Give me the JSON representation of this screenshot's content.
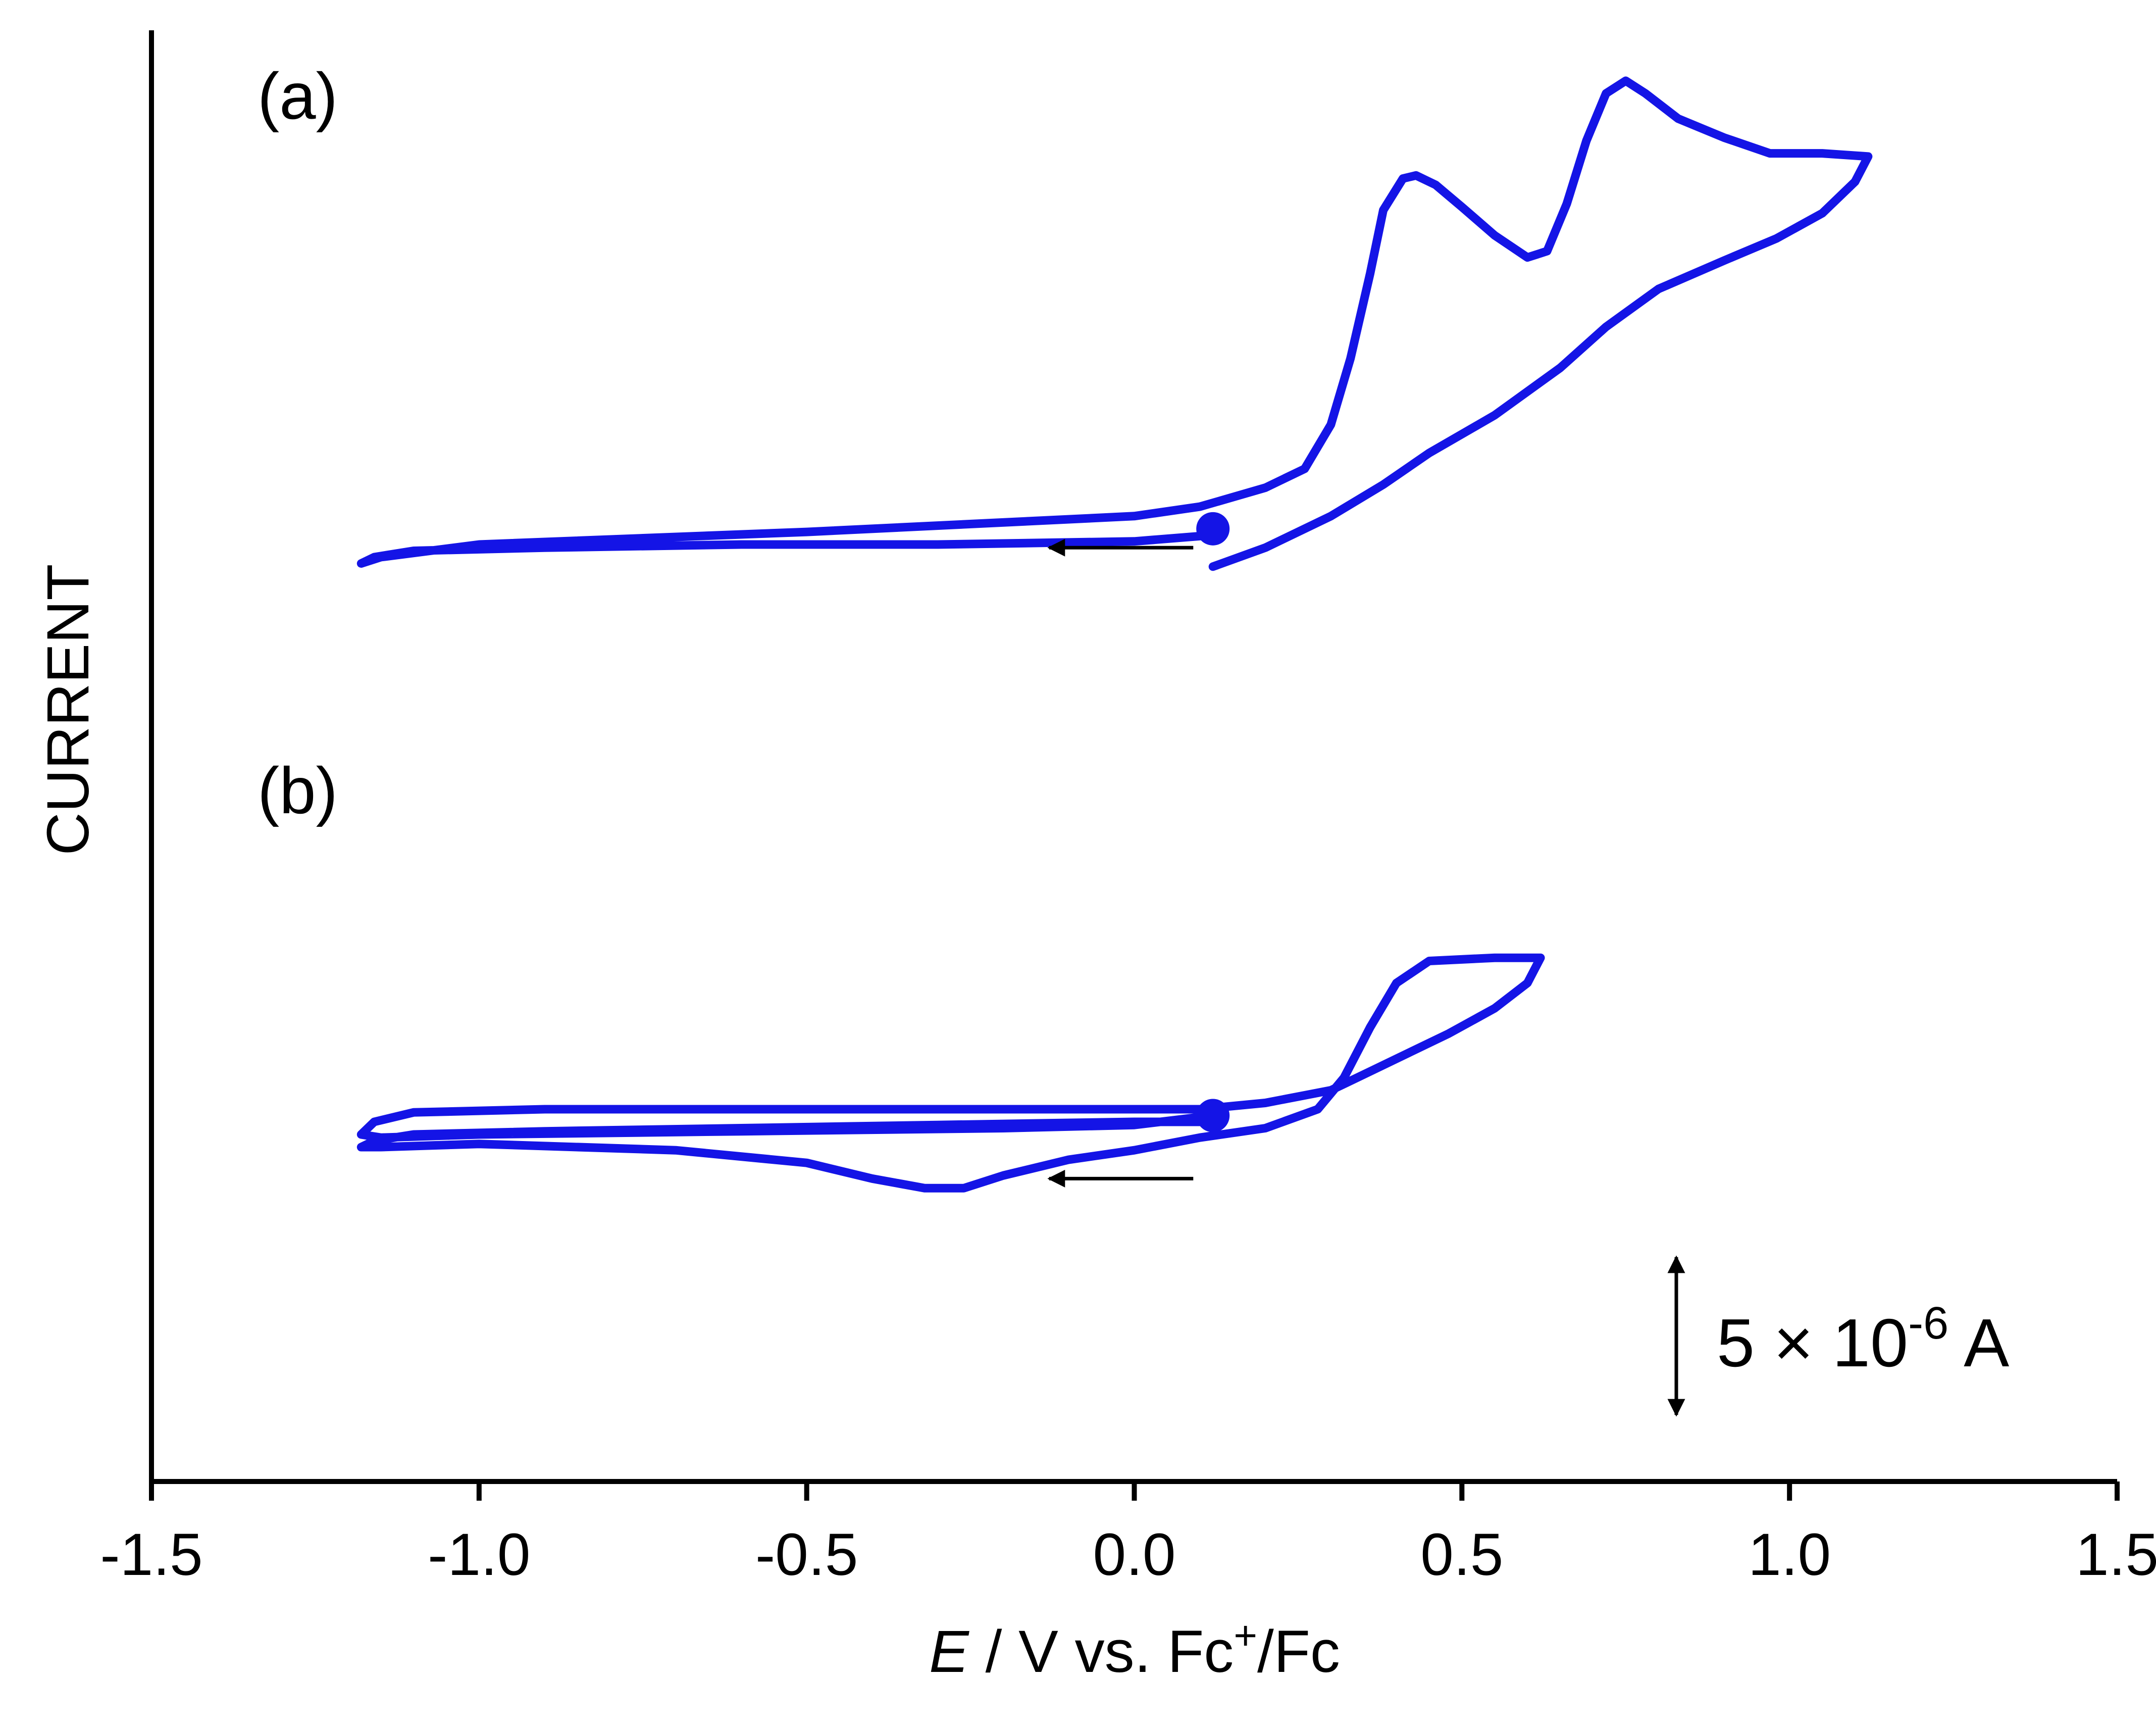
{
  "chart_data": {
    "type": "line",
    "title": "",
    "xlabel": "E / V vs. Fc+/Fc",
    "xlabel_parts": {
      "var": "E",
      "rest1": " / V vs. Fc",
      "sup": "+",
      "rest2": "/Fc"
    },
    "ylabel": "CURRENT",
    "xlim": [
      -1.5,
      1.5
    ],
    "xticks": [
      -1.5,
      -1.0,
      -0.5,
      0.0,
      0.5,
      1.0,
      1.5
    ],
    "xtick_labels": [
      "-1.5",
      "-1.0",
      "-0.5",
      "0.0",
      "0.5",
      "1.0",
      "1.5"
    ],
    "ylim": [
      0,
      46
    ],
    "y_units": "µA (arbitrary offset)",
    "grid": false,
    "line_color": "#1414e6",
    "scale_bar": {
      "text_main": "5 × 10",
      "text_sup": "-6",
      "text_unit": " A",
      "value_uA": 5
    },
    "series": [
      {
        "name": "(a)",
        "label": "(a)",
        "start": [
          0.12,
          30.2
        ],
        "x": [
          0.12,
          0.0,
          -0.3,
          -0.6,
          -0.9,
          -1.1,
          -1.16,
          -1.18,
          -1.15,
          -1.0,
          -0.5,
          0.0,
          0.1,
          0.2,
          0.26,
          0.3,
          0.33,
          0.36,
          0.38,
          0.41,
          0.43,
          0.46,
          0.5,
          0.55,
          0.6,
          0.63,
          0.66,
          0.69,
          0.72,
          0.75,
          0.78,
          0.83,
          0.9,
          0.97,
          1.05,
          1.12,
          1.1,
          1.05,
          0.98,
          0.9,
          0.8,
          0.72,
          0.65,
          0.55,
          0.45,
          0.38,
          0.3,
          0.2,
          0.12
        ],
        "y": [
          30.0,
          29.8,
          29.7,
          29.7,
          29.6,
          29.5,
          29.3,
          29.1,
          29.3,
          29.7,
          30.1,
          30.6,
          30.9,
          31.5,
          32.1,
          33.5,
          35.6,
          38.3,
          40.3,
          41.3,
          41.4,
          41.1,
          40.4,
          39.5,
          38.8,
          39.0,
          40.5,
          42.5,
          44.0,
          44.4,
          44.0,
          43.2,
          42.6,
          42.1,
          42.1,
          42.0,
          41.2,
          40.2,
          39.4,
          38.7,
          37.8,
          36.6,
          35.3,
          33.8,
          32.6,
          31.6,
          30.6,
          29.6,
          29.0
        ]
      },
      {
        "name": "(b)",
        "label": "(b)",
        "start": [
          0.12,
          11.6
        ],
        "x": [
          0.12,
          0.0,
          -0.3,
          -0.6,
          -0.9,
          -1.1,
          -1.16,
          -1.18,
          -1.15,
          -1.0,
          -0.7,
          -0.5,
          -0.4,
          -0.32,
          -0.26,
          -0.2,
          -0.1,
          0.0,
          0.1,
          0.2,
          0.28,
          0.32,
          0.36,
          0.4,
          0.45,
          0.55,
          0.62,
          0.6,
          0.55,
          0.48,
          0.42,
          0.36,
          0.3,
          0.2,
          0.1,
          0.0,
          -0.2,
          -0.5,
          -0.9,
          -1.1,
          -1.16,
          -1.18,
          -1.15,
          -1.0,
          -0.6,
          -0.2,
          0.0,
          0.12
        ],
        "y": [
          11.4,
          11.4,
          11.3,
          11.2,
          11.1,
          11.0,
          10.8,
          10.6,
          10.6,
          10.7,
          10.5,
          10.1,
          9.6,
          9.3,
          9.3,
          9.7,
          10.2,
          10.5,
          10.9,
          11.2,
          11.8,
          12.8,
          14.4,
          15.8,
          16.5,
          16.6,
          16.6,
          15.8,
          15.0,
          14.2,
          13.6,
          13.0,
          12.4,
          12.0,
          11.8,
          11.8,
          11.8,
          11.8,
          11.8,
          11.7,
          11.4,
          11.0,
          10.9,
          11.0,
          11.1,
          11.2,
          11.3,
          11.6
        ]
      }
    ],
    "annotations": [
      {
        "type": "arrow",
        "panel": "(a)",
        "direction": "left",
        "from": [
          0.09,
          29.6
        ],
        "to": [
          -0.13,
          29.6
        ]
      },
      {
        "type": "arrow",
        "panel": "(b)",
        "direction": "left",
        "from": [
          0.09,
          9.6
        ],
        "to": [
          -0.13,
          9.6
        ]
      }
    ]
  }
}
